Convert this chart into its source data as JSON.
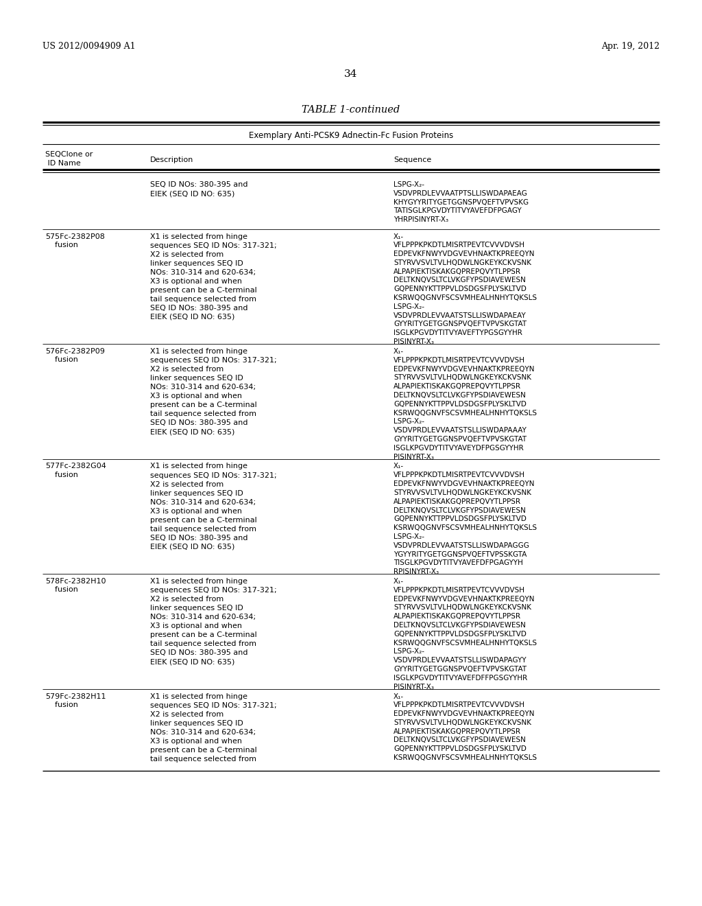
{
  "header_left": "US 2012/0094909 A1",
  "header_right": "Apr. 19, 2012",
  "page_number": "34",
  "table_title": "TABLE 1-continued",
  "table_subtitle": "Exemplary Anti-PCSK9 Adnectin-Fc Fusion Proteins",
  "col1_header_line1": "SEQClone or",
  "col1_header_line2": " ID Name",
  "col2_header": "Description",
  "col3_header": "Sequence",
  "rows": [
    {
      "id": "",
      "id2": "",
      "description": "SEQ ID NOs: 380-395 and\nEIEK (SEQ ID NO: 635)",
      "sequence": "LSPG-X₂-\nVSDVPRDLEVVAATPTSLLISWDAPAEAG\nKHYGYYRITYGETGGNSPVQEFTVPVSKG\nTATISGLKPGVDYTITVYAVEFDFPGAGY\nYHRPISINYRT-X₃"
    },
    {
      "id": "575Fc-2382P08",
      "id2": "    fusion",
      "description": "X1 is selected from hinge\nsequences SEQ ID NOs: 317-321;\nX2 is selected from\nlinker sequences SEQ ID\nNOs: 310-314 and 620-634;\nX3 is optional and when\npresent can be a C-terminal\ntail sequence selected from\nSEQ ID NOs: 380-395 and\nEIEK (SEQ ID NO: 635)",
      "sequence": "X₁-\nVFLPPPKPKDTLMISRTPEVTCVVVDVSH\nEDPEVKFNWYVDGVEVHNAKTKPREEQYN\nSTYRVVSVLTVLHQDWLNGKEYKCKVSNK\nALPAPIEKTISKAKGQPREPQVYTLPPSR\nDELTKNQVSLTCLVKGFYPSDIAVEWESN\nGQPENNYKTTPPVLDSDGSFPLYSKLTVD\nKSRWQQGNVFSCSVMHEALHNHYTQKSLS\nLSPG-X₂-\nVSDVPRDLEVVAATSTSLLISWDAPAEAY\nGYYRITYGETGGNSPVQEFTVPVSKGTAT\nISGLKPGVDYTITVYAVEFTYPGSGYYHR\nPISINYRT-X₃"
    },
    {
      "id": "576Fc-2382P09",
      "id2": "    fusion",
      "description": "X1 is selected from hinge\nsequences SEQ ID NOs: 317-321;\nX2 is selected from\nlinker sequences SEQ ID\nNOs: 310-314 and 620-634;\nX3 is optional and when\npresent can be a C-terminal\ntail sequence selected from\nSEQ ID NOs: 380-395 and\nEIEK (SEQ ID NO: 635)",
      "sequence": "X₁-\nVFLPPPKPKDTLMISRTPEVTCVVVDVSH\nEDPEVKFNWYVDGVEVHNAKTKPREEQYN\nSTYRVVSVLTVLHQDWLNGKEYKCKVSNK\nALPAPIEKTISKAKGQPREPQVYTLPPSR\nDELTKNQVSLTCLVKGFYPSDIAVEWESN\nGQPENNYKTTPPVLDSDGSFPLYSKLTVD\nKSRWQQGNVFSCSVMHEALHNHYTQKSLS\nLSPG-X₂-\nVSDVPRDLEVVAATSTSLLISWDAPAAAY\nGYYRITYGETGGNSPVQEFTVPVSKGTAT\nISGLKPGVDYTITVYAVEYDFPGSGYYHR\nPISINYRT-X₃"
    },
    {
      "id": "577Fc-2382G04",
      "id2": "    fusion",
      "description": "X1 is selected from hinge\nsequences SEQ ID NOs: 317-321;\nX2 is selected from\nlinker sequences SEQ ID\nNOs: 310-314 and 620-634;\nX3 is optional and when\npresent can be a C-terminal\ntail sequence selected from\nSEQ ID NOs: 380-395 and\nEIEK (SEQ ID NO: 635)",
      "sequence": "X₁-\nVFLPPPKPKDTLMISRTPEVTCVVVDVSH\nEDPEVKFNWYVDGVEVHNAKTKPREEQYN\nSTYRVVSVLTVLHQDWLNGKEYKCKVSNK\nALPAPIEKTISKAKGQPREPQVYTLPPSR\nDELTKNQVSLTCLVKGFYPSDIAVEWESN\nGQPENNYKTTPPVLDSDGSFPLYSKLTVD\nKSRWQQGNVFSCSVMHEALHNHYTQKSLS\nLSPG-X₂-\nVSDVPRDLEVVAATSTSLLISWDAPAGGG\nYGYYRITYGETGGNSPVQEFTVPSSKGTA\nTISGLKPGVDYTITVYAVEFDFPGAGYYH\nRPISINYRT-X₃"
    },
    {
      "id": "578Fc-2382H10",
      "id2": "    fusion",
      "description": "X1 is selected from hinge\nsequences SEQ ID NOs: 317-321;\nX2 is selected from\nlinker sequences SEQ ID\nNOs: 310-314 and 620-634;\nX3 is optional and when\npresent can be a C-terminal\ntail sequence selected from\nSEQ ID NOs: 380-395 and\nEIEK (SEQ ID NO: 635)",
      "sequence": "X₁-\nVFLPPPKPKDTLMISRTPEVTCVVVDVSH\nEDPEVKFNWYVDGVEVHNAKTKPREEQYN\nSTYRVVSVLTVLHQDWLNGKEYKCKVSNK\nALPAPIEKTISKAKGQPREPQVYTLPPSR\nDELTKNQVSLTCLVKGFYPSDIAVEWESN\nGQPENNYKTTPPVLDSDGSFPLYSKLTVD\nKSRWQQGNVFSCSVMHEALHNHYTQKSLS\nLSPG-X₂-\nVSDVPRDLEVVAATSTSLLISWDAPAGYY\nGYYRITYGETGGNSPVQEFTVPVSKGTAT\nISGLKPGVDYTITVYAVEFDFFPGSGYYHR\nPISINYRT-X₃"
    },
    {
      "id": "579Fc-2382H11",
      "id2": "    fusion",
      "description": "X1 is selected from hinge\nsequences SEQ ID NOs: 317-321;\nX2 is selected from\nlinker sequences SEQ ID\nNOs: 310-314 and 620-634;\nX3 is optional and when\npresent can be a C-terminal\ntail sequence selected from",
      "sequence": "X₁-\nVFLPPPKPKDTLMISRTPEVTCVVVDVSH\nEDPEVKFNWYVDGVEVHNAKTKPREEQYN\nSTYRVVSVLTVLHQDWLNGKEYKCKVSNK\nALPAPIEKTISKAKGQPREPQVYTLPPSR\nDELTKNQVSLTCLVKGFYPSDIAVEWESN\nGQPENNYKTTPPVLDSDGSFPLYSKLTVD\nKSRWQQGNVFSCSVMHEALHNHYTQKSLS"
    }
  ],
  "bg_color": "#ffffff",
  "text_color": "#000000"
}
